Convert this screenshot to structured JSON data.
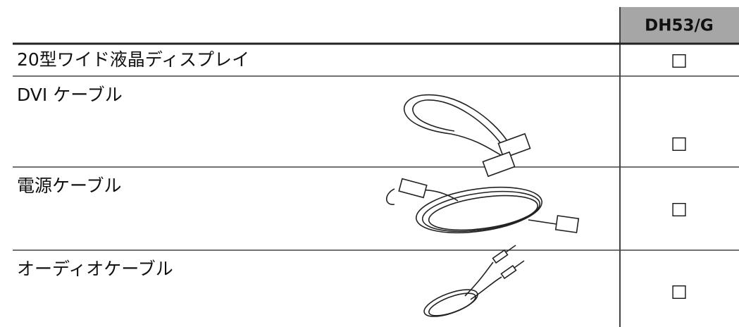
{
  "table": {
    "header": [
      "DH53/G"
    ],
    "rows": [
      [
        "20型ワイド液晶ディスプレイ",
        "□"
      ],
      [
        "DVI ケーブル",
        "□"
      ],
      [
        "電源ケーブル",
        "□"
      ],
      [
        "オーディオケーブル",
        "□"
      ]
    ]
  }
}
